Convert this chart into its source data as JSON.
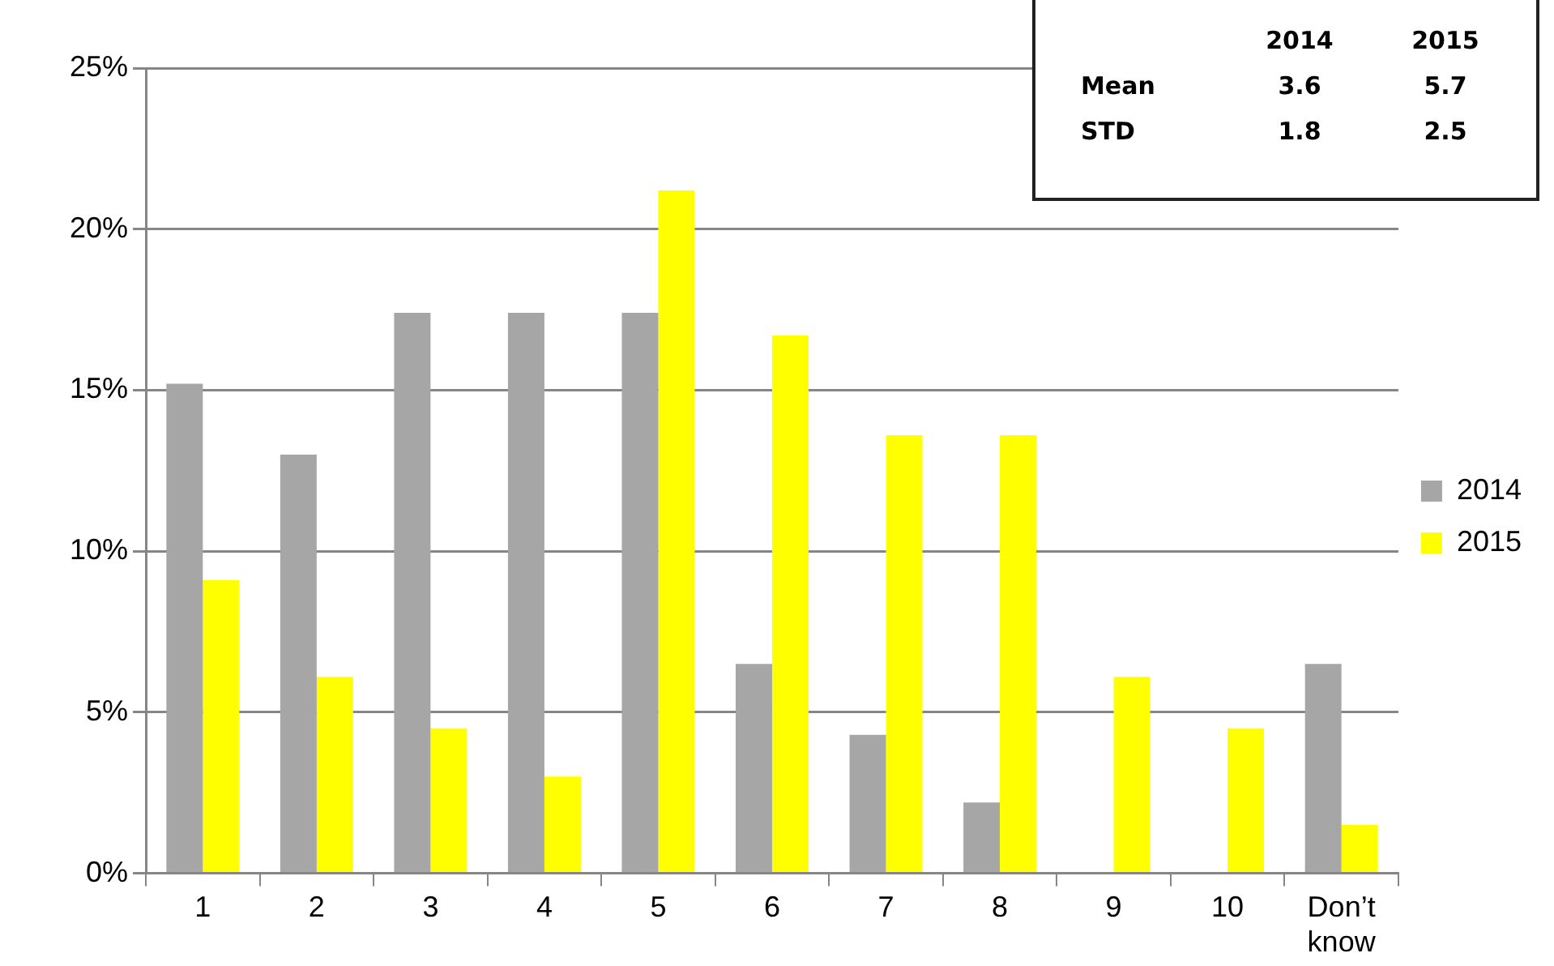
{
  "chart_data": {
    "type": "bar",
    "categories": [
      "1",
      "2",
      "3",
      "4",
      "5",
      "6",
      "7",
      "8",
      "9",
      "10",
      "Don’t know"
    ],
    "series": [
      {
        "name": "2014",
        "color": "#a6a6a6",
        "values": [
          15.2,
          13.0,
          17.4,
          17.4,
          17.4,
          6.5,
          4.3,
          2.2,
          0,
          0,
          6.5
        ]
      },
      {
        "name": "2015",
        "color": "#ffff00",
        "values": [
          9.1,
          6.1,
          4.5,
          3.0,
          21.2,
          16.7,
          13.6,
          13.6,
          6.1,
          4.5,
          1.5
        ]
      }
    ],
    "ylim": [
      0,
      25
    ],
    "yticks": [
      {
        "value": 0,
        "label": "0%"
      },
      {
        "value": 5,
        "label": "5%"
      },
      {
        "value": 10,
        "label": "10%"
      },
      {
        "value": 15,
        "label": "15%"
      },
      {
        "value": 20,
        "label": "20%"
      },
      {
        "value": 25,
        "label": "25%"
      }
    ],
    "grid": "y",
    "legend": "right",
    "annotations": [
      "2014",
      "2015",
      "Mean",
      "3.6",
      "5.7",
      "STD",
      "1.8",
      "2.5"
    ]
  }
}
